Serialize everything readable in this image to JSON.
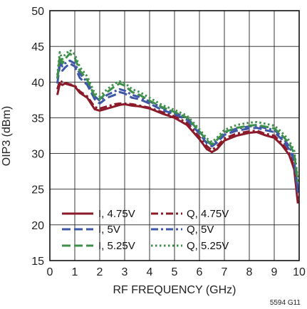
{
  "chart_data": {
    "type": "line",
    "title": "",
    "xlabel": "RF FREQUENCY (GHz)",
    "ylabel": "OIP3 (dBm)",
    "xlim": [
      0,
      10
    ],
    "ylim": [
      15,
      50
    ],
    "xticks": [
      0,
      1,
      2,
      3,
      4,
      5,
      6,
      7,
      8,
      9,
      10
    ],
    "yticks": [
      15,
      20,
      25,
      30,
      35,
      40,
      45,
      50
    ],
    "grid": true,
    "legend_position": "bottom-left",
    "series": [
      {
        "name": "I, 4.75V",
        "color": "#8b1a2b",
        "dash": "solid",
        "x": [
          0.3,
          0.4,
          0.5,
          0.6,
          0.8,
          1.0,
          1.2,
          1.5,
          1.8,
          2.0,
          2.3,
          2.6,
          2.8,
          3.0,
          3.3,
          3.6,
          4.0,
          4.5,
          5.0,
          5.5,
          6.0,
          6.3,
          6.5,
          6.7,
          7.0,
          7.5,
          8.0,
          8.3,
          8.6,
          9.0,
          9.3,
          9.6,
          9.8,
          9.95
        ],
        "values": [
          38.2,
          39.8,
          39.6,
          39.8,
          39.6,
          39.4,
          38.5,
          37.8,
          36.2,
          36.0,
          36.3,
          36.6,
          36.8,
          36.9,
          36.7,
          36.6,
          36.3,
          35.6,
          35.0,
          34.0,
          32.0,
          30.6,
          30.2,
          30.6,
          31.8,
          32.5,
          32.9,
          33.0,
          32.6,
          32.2,
          31.2,
          29.8,
          27.8,
          23.0
        ]
      },
      {
        "name": "Q, 4.75V",
        "color": "#8b1a2b",
        "dash": "dashdot",
        "x": [
          0.3,
          0.4,
          0.5,
          0.6,
          0.8,
          1.0,
          1.2,
          1.5,
          1.8,
          2.0,
          2.3,
          2.6,
          2.8,
          3.0,
          3.3,
          3.6,
          4.0,
          4.5,
          5.0,
          5.5,
          6.0,
          6.3,
          6.5,
          6.7,
          7.0,
          7.5,
          8.0,
          8.3,
          8.6,
          9.0,
          9.3,
          9.6,
          9.8,
          9.95
        ],
        "values": [
          39.0,
          40.2,
          40.0,
          39.9,
          39.7,
          39.5,
          38.7,
          38.0,
          36.5,
          36.3,
          36.6,
          36.9,
          37.0,
          37.0,
          36.9,
          36.7,
          36.4,
          35.8,
          35.2,
          34.3,
          32.3,
          31.0,
          30.5,
          31.0,
          32.1,
          32.8,
          33.1,
          33.2,
          32.8,
          32.5,
          31.5,
          30.1,
          28.2,
          23.5
        ]
      },
      {
        "name": "I, 5V",
        "color": "#3e57a6",
        "dash": "dash",
        "x": [
          0.3,
          0.4,
          0.5,
          0.6,
          0.8,
          1.0,
          1.2,
          1.5,
          1.8,
          2.0,
          2.3,
          2.6,
          2.8,
          3.0,
          3.3,
          3.6,
          4.0,
          4.5,
          5.0,
          5.5,
          6.0,
          6.3,
          6.5,
          6.7,
          7.0,
          7.5,
          8.0,
          8.3,
          8.6,
          9.0,
          9.3,
          9.6,
          9.8,
          9.95
        ],
        "values": [
          39.8,
          42.4,
          41.6,
          42.0,
          42.6,
          42.2,
          40.6,
          39.6,
          37.6,
          37.0,
          37.8,
          38.2,
          38.6,
          38.4,
          37.8,
          37.6,
          37.0,
          36.1,
          35.5,
          34.7,
          32.8,
          31.4,
          31.0,
          31.5,
          32.6,
          33.2,
          33.5,
          33.6,
          33.3,
          33.0,
          32.0,
          30.6,
          29.0,
          24.5
        ]
      },
      {
        "name": "Q, 5V",
        "color": "#3e57a6",
        "dash": "dashdot",
        "x": [
          0.3,
          0.4,
          0.5,
          0.6,
          0.8,
          1.0,
          1.2,
          1.5,
          1.8,
          2.0,
          2.3,
          2.6,
          2.8,
          3.0,
          3.3,
          3.6,
          4.0,
          4.5,
          5.0,
          5.5,
          6.0,
          6.3,
          6.5,
          6.7,
          7.0,
          7.5,
          8.0,
          8.3,
          8.6,
          9.0,
          9.3,
          9.6,
          9.8,
          9.95
        ],
        "values": [
          40.5,
          42.8,
          42.2,
          42.6,
          43.0,
          42.6,
          41.2,
          40.0,
          38.0,
          37.4,
          38.2,
          38.7,
          39.0,
          38.8,
          38.2,
          37.9,
          37.3,
          36.4,
          35.7,
          35.0,
          33.1,
          31.7,
          31.2,
          31.8,
          32.9,
          33.5,
          33.8,
          33.9,
          33.6,
          33.3,
          32.4,
          31.0,
          29.4,
          25.0
        ]
      },
      {
        "name": "I, 5.25V",
        "color": "#3d8f4a",
        "dash": "dash",
        "x": [
          0.3,
          0.4,
          0.5,
          0.6,
          0.8,
          1.0,
          1.2,
          1.5,
          1.8,
          2.0,
          2.3,
          2.6,
          2.8,
          3.0,
          3.3,
          3.6,
          4.0,
          4.5,
          5.0,
          5.5,
          6.0,
          6.3,
          6.5,
          6.7,
          7.0,
          7.5,
          8.0,
          8.3,
          8.6,
          9.0,
          9.3,
          9.6,
          9.8,
          9.95
        ],
        "values": [
          40.5,
          43.6,
          42.6,
          43.2,
          44.0,
          43.4,
          41.6,
          40.3,
          38.0,
          37.6,
          38.6,
          39.4,
          39.8,
          39.5,
          38.6,
          38.2,
          37.4,
          36.5,
          35.8,
          35.0,
          33.1,
          31.8,
          31.3,
          31.9,
          33.0,
          33.6,
          33.9,
          34.0,
          33.8,
          33.5,
          32.6,
          31.4,
          30.0,
          26.0
        ]
      },
      {
        "name": "Q, 5.25V",
        "color": "#3d8f4a",
        "dash": "dot",
        "x": [
          0.3,
          0.4,
          0.5,
          0.6,
          0.8,
          1.0,
          1.2,
          1.5,
          1.8,
          2.0,
          2.3,
          2.6,
          2.8,
          3.0,
          3.3,
          3.6,
          4.0,
          4.5,
          5.0,
          5.5,
          6.0,
          6.3,
          6.5,
          6.7,
          7.0,
          7.5,
          8.0,
          8.3,
          8.6,
          9.0,
          9.3,
          9.6,
          9.8,
          9.95
        ],
        "values": [
          41.0,
          44.2,
          43.2,
          43.8,
          44.5,
          43.9,
          42.1,
          40.8,
          38.4,
          38.0,
          39.0,
          39.8,
          40.1,
          39.9,
          39.0,
          38.6,
          37.8,
          36.8,
          36.1,
          35.3,
          33.4,
          32.1,
          31.6,
          32.2,
          33.3,
          34.0,
          34.3,
          34.4,
          34.2,
          33.9,
          33.0,
          31.8,
          30.4,
          26.5
        ]
      }
    ]
  },
  "figure_id": "5594 G11"
}
